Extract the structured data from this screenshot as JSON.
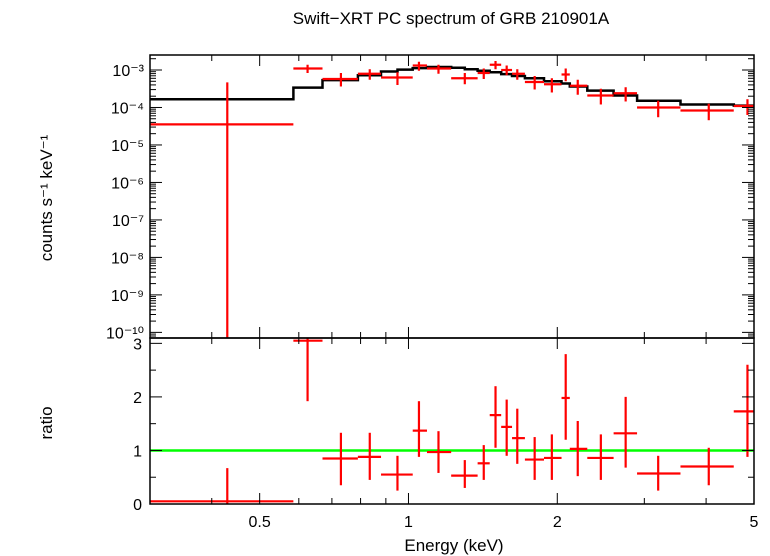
{
  "chart_data": {
    "type": "scatter",
    "title": "Swift−XRT PC spectrum of GRB 210901A",
    "xlabel": "Energy (keV)",
    "x_scale": "log",
    "xlim": [
      0.3,
      5.0
    ],
    "x_ticks": [
      {
        "value": 0.5,
        "label": "0.5"
      },
      {
        "value": 1,
        "label": "1"
      },
      {
        "value": 2,
        "label": "2"
      },
      {
        "value": 5,
        "label": "5"
      }
    ],
    "colors": {
      "data": "#ff0000",
      "model": "#000000",
      "unity": "#00ff00",
      "axes": "#000000"
    },
    "panels": [
      {
        "name": "spectrum",
        "ylabel": "counts s⁻¹ keV⁻¹",
        "y_scale": "log",
        "ylim_exp": [
          -10.15,
          -2.6
        ],
        "y_ticks": [
          {
            "exp": -3,
            "label": "10⁻³"
          },
          {
            "exp": -4,
            "label": "10⁻⁴"
          },
          {
            "exp": -5,
            "label": "10⁻⁵"
          },
          {
            "exp": -6,
            "label": "10⁻⁶"
          },
          {
            "exp": -7,
            "label": "10⁻⁷"
          },
          {
            "exp": -8,
            "label": "10⁻⁸"
          },
          {
            "exp": -9,
            "label": "10⁻⁹"
          },
          {
            "exp": -10,
            "label": "10⁻¹⁰"
          }
        ],
        "series": [
          {
            "name": "data",
            "points": [
              {
                "x": 0.43,
                "xlo": 0.3,
                "xhi": 0.585,
                "y": -4.45,
                "ylo": -10.15,
                "yhi": -3.33
              },
              {
                "x": 0.625,
                "xlo": 0.585,
                "xhi": 0.67,
                "y": -2.96,
                "ylo": -3.08,
                "yhi": -2.86
              },
              {
                "x": 0.73,
                "xlo": 0.67,
                "xhi": 0.79,
                "y": -3.24,
                "ylo": -3.44,
                "yhi": -3.08
              },
              {
                "x": 0.835,
                "xlo": 0.79,
                "xhi": 0.88,
                "y": -3.1,
                "ylo": -3.26,
                "yhi": -2.98
              },
              {
                "x": 0.95,
                "xlo": 0.88,
                "xhi": 1.02,
                "y": -3.2,
                "ylo": -3.4,
                "yhi": -3.06
              },
              {
                "x": 1.05,
                "xlo": 1.02,
                "xhi": 1.09,
                "y": -2.88,
                "ylo": -3.02,
                "yhi": -2.78
              },
              {
                "x": 1.15,
                "xlo": 1.09,
                "xhi": 1.22,
                "y": -2.96,
                "ylo": -3.1,
                "yhi": -2.86
              },
              {
                "x": 1.3,
                "xlo": 1.22,
                "xhi": 1.38,
                "y": -3.22,
                "ylo": -3.38,
                "yhi": -3.08
              },
              {
                "x": 1.42,
                "xlo": 1.38,
                "xhi": 1.46,
                "y": -3.08,
                "ylo": -3.24,
                "yhi": -2.96
              },
              {
                "x": 1.5,
                "xlo": 1.46,
                "xhi": 1.54,
                "y": -2.86,
                "ylo": -2.98,
                "yhi": -2.76
              },
              {
                "x": 1.58,
                "xlo": 1.54,
                "xhi": 1.62,
                "y": -3.0,
                "ylo": -3.14,
                "yhi": -2.88
              },
              {
                "x": 1.66,
                "xlo": 1.62,
                "xhi": 1.72,
                "y": -3.1,
                "ylo": -3.26,
                "yhi": -2.98
              },
              {
                "x": 1.8,
                "xlo": 1.72,
                "xhi": 1.88,
                "y": -3.32,
                "ylo": -3.52,
                "yhi": -3.16
              },
              {
                "x": 1.95,
                "xlo": 1.88,
                "xhi": 2.04,
                "y": -3.38,
                "ylo": -3.6,
                "yhi": -3.22
              },
              {
                "x": 2.08,
                "xlo": 2.04,
                "xhi": 2.12,
                "y": -3.12,
                "ylo": -3.3,
                "yhi": -2.96
              },
              {
                "x": 2.2,
                "xlo": 2.12,
                "xhi": 2.3,
                "y": -3.42,
                "ylo": -3.66,
                "yhi": -3.26
              },
              {
                "x": 2.45,
                "xlo": 2.3,
                "xhi": 2.6,
                "y": -3.68,
                "ylo": -3.92,
                "yhi": -3.5
              },
              {
                "x": 2.75,
                "xlo": 2.6,
                "xhi": 2.9,
                "y": -3.62,
                "ylo": -3.84,
                "yhi": -3.46
              },
              {
                "x": 3.2,
                "xlo": 2.9,
                "xhi": 3.55,
                "y": -4.0,
                "ylo": -4.26,
                "yhi": -3.82
              },
              {
                "x": 4.05,
                "xlo": 3.55,
                "xhi": 4.55,
                "y": -4.08,
                "ylo": -4.34,
                "yhi": -3.9
              },
              {
                "x": 4.85,
                "xlo": 4.55,
                "xhi": 5.0,
                "y": -3.96,
                "ylo": -4.2,
                "yhi": -3.78
              }
            ]
          },
          {
            "name": "model",
            "steps": [
              {
                "x0": 0.3,
                "x1": 0.585,
                "y": -3.78
              },
              {
                "x0": 0.585,
                "x1": 0.67,
                "y": -3.47
              },
              {
                "x0": 0.67,
                "x1": 0.79,
                "y": -3.27
              },
              {
                "x0": 0.79,
                "x1": 0.88,
                "y": -3.14
              },
              {
                "x0": 0.88,
                "x1": 0.95,
                "y": -3.04
              },
              {
                "x0": 0.95,
                "x1": 1.02,
                "y": -2.99
              },
              {
                "x0": 1.02,
                "x1": 1.09,
                "y": -2.95
              },
              {
                "x0": 1.09,
                "x1": 1.22,
                "y": -2.92
              },
              {
                "x0": 1.22,
                "x1": 1.3,
                "y": -2.94
              },
              {
                "x0": 1.3,
                "x1": 1.38,
                "y": -2.98
              },
              {
                "x0": 1.38,
                "x1": 1.46,
                "y": -3.02
              },
              {
                "x0": 1.46,
                "x1": 1.54,
                "y": -3.06
              },
              {
                "x0": 1.54,
                "x1": 1.62,
                "y": -3.11
              },
              {
                "x0": 1.62,
                "x1": 1.72,
                "y": -3.16
              },
              {
                "x0": 1.72,
                "x1": 1.88,
                "y": -3.22
              },
              {
                "x0": 1.88,
                "x1": 2.04,
                "y": -3.3
              },
              {
                "x0": 2.04,
                "x1": 2.12,
                "y": -3.36
              },
              {
                "x0": 2.12,
                "x1": 2.3,
                "y": -3.44
              },
              {
                "x0": 2.3,
                "x1": 2.6,
                "y": -3.55
              },
              {
                "x0": 2.6,
                "x1": 2.9,
                "y": -3.68
              },
              {
                "x0": 2.9,
                "x1": 3.55,
                "y": -3.82
              },
              {
                "x0": 3.55,
                "x1": 4.55,
                "y": -3.92
              },
              {
                "x0": 4.55,
                "x1": 5.0,
                "y": -3.95
              }
            ]
          }
        ]
      },
      {
        "name": "ratio",
        "ylabel": "ratio",
        "y_scale": "linear",
        "ylim": [
          0,
          3.1
        ],
        "y_ticks": [
          {
            "value": 0,
            "label": "0"
          },
          {
            "value": 1,
            "label": "1"
          },
          {
            "value": 2,
            "label": "2"
          },
          {
            "value": 3,
            "label": "3"
          }
        ],
        "reference_line": 1,
        "series": [
          {
            "name": "ratio",
            "points": [
              {
                "x": 0.43,
                "xlo": 0.3,
                "xhi": 0.585,
                "y": 0.05,
                "ylo": 0.0,
                "yhi": 0.67
              },
              {
                "x": 0.625,
                "xlo": 0.585,
                "xhi": 0.67,
                "y": 3.05,
                "ylo": 1.92,
                "yhi": 3.1
              },
              {
                "x": 0.73,
                "xlo": 0.67,
                "xhi": 0.79,
                "y": 0.85,
                "ylo": 0.35,
                "yhi": 1.33
              },
              {
                "x": 0.835,
                "xlo": 0.79,
                "xhi": 0.88,
                "y": 0.88,
                "ylo": 0.45,
                "yhi": 1.33
              },
              {
                "x": 0.95,
                "xlo": 0.88,
                "xhi": 1.02,
                "y": 0.55,
                "ylo": 0.25,
                "yhi": 0.9
              },
              {
                "x": 1.05,
                "xlo": 1.02,
                "xhi": 1.09,
                "y": 1.37,
                "ylo": 0.88,
                "yhi": 1.92
              },
              {
                "x": 1.15,
                "xlo": 1.09,
                "xhi": 1.22,
                "y": 0.97,
                "ylo": 0.58,
                "yhi": 1.36
              },
              {
                "x": 1.3,
                "xlo": 1.22,
                "xhi": 1.38,
                "y": 0.53,
                "ylo": 0.3,
                "yhi": 0.82
              },
              {
                "x": 1.42,
                "xlo": 1.38,
                "xhi": 1.46,
                "y": 0.76,
                "ylo": 0.45,
                "yhi": 1.1
              },
              {
                "x": 1.5,
                "xlo": 1.46,
                "xhi": 1.54,
                "y": 1.66,
                "ylo": 1.05,
                "yhi": 2.2
              },
              {
                "x": 1.58,
                "xlo": 1.54,
                "xhi": 1.62,
                "y": 1.44,
                "ylo": 0.9,
                "yhi": 1.95
              },
              {
                "x": 1.66,
                "xlo": 1.62,
                "xhi": 1.72,
                "y": 1.23,
                "ylo": 0.75,
                "yhi": 1.78
              },
              {
                "x": 1.8,
                "xlo": 1.72,
                "xhi": 1.88,
                "y": 0.83,
                "ylo": 0.45,
                "yhi": 1.25
              },
              {
                "x": 1.95,
                "xlo": 1.88,
                "xhi": 2.04,
                "y": 0.86,
                "ylo": 0.45,
                "yhi": 1.3
              },
              {
                "x": 2.08,
                "xlo": 2.04,
                "xhi": 2.12,
                "y": 1.98,
                "ylo": 1.2,
                "yhi": 2.8
              },
              {
                "x": 2.2,
                "xlo": 2.12,
                "xhi": 2.3,
                "y": 1.03,
                "ylo": 0.52,
                "yhi": 1.55
              },
              {
                "x": 2.45,
                "xlo": 2.3,
                "xhi": 2.6,
                "y": 0.86,
                "ylo": 0.45,
                "yhi": 1.3
              },
              {
                "x": 2.75,
                "xlo": 2.6,
                "xhi": 2.9,
                "y": 1.32,
                "ylo": 0.68,
                "yhi": 2.0
              },
              {
                "x": 3.2,
                "xlo": 2.9,
                "xhi": 3.55,
                "y": 0.57,
                "ylo": 0.25,
                "yhi": 0.9
              },
              {
                "x": 4.05,
                "xlo": 3.55,
                "xhi": 4.55,
                "y": 0.7,
                "ylo": 0.35,
                "yhi": 1.05
              },
              {
                "x": 4.85,
                "xlo": 4.55,
                "xhi": 5.0,
                "y": 1.73,
                "ylo": 0.88,
                "yhi": 2.6
              }
            ]
          }
        ]
      }
    ]
  }
}
